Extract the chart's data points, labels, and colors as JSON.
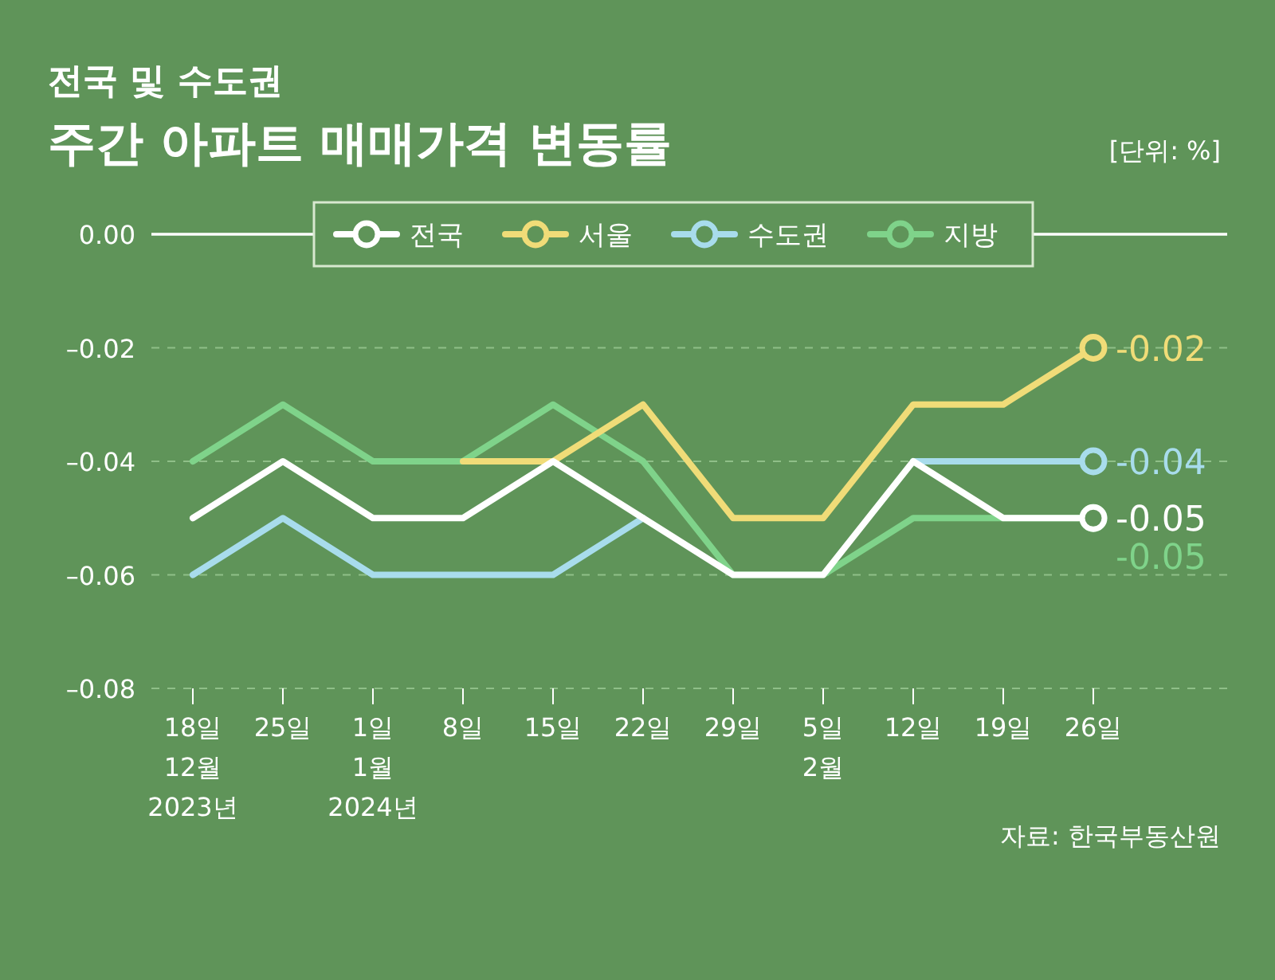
{
  "chart_data": {
    "type": "line",
    "title": "전국 및 수도권",
    "subtitle": "주간 아파트 매매가격 변동률",
    "annotations": [
      "[단위: %]",
      "자료: 한국부동산원"
    ],
    "categories": [
      "18일\n12월\n2023년",
      "25일",
      "1일\n1월\n2024년",
      "8일",
      "15일",
      "22일",
      "29일",
      "5일\n2월",
      "12일",
      "19일",
      "26일"
    ],
    "series": [
      {
        "name": "전국",
        "color": "#ffffff",
        "values": [
          -0.05,
          -0.04,
          -0.05,
          -0.05,
          -0.04,
          -0.05,
          -0.06,
          -0.06,
          -0.04,
          -0.05,
          -0.05
        ],
        "value_labels": [
          null,
          null,
          null,
          null,
          null,
          null,
          null,
          null,
          null,
          null,
          "-0.05"
        ]
      },
      {
        "name": "서울",
        "color": "#f0dc78",
        "values": [
          null,
          null,
          null,
          -0.04,
          -0.04,
          -0.03,
          -0.05,
          -0.05,
          -0.03,
          -0.03,
          -0.02
        ],
        "value_labels": [
          null,
          null,
          null,
          null,
          null,
          null,
          null,
          null,
          null,
          null,
          "-0.02"
        ]
      },
      {
        "name": "수도권",
        "color": "#a8dcec",
        "values": [
          -0.06,
          -0.05,
          -0.06,
          -0.06,
          -0.06,
          -0.05,
          null,
          null,
          -0.04,
          -0.04,
          -0.04
        ],
        "value_labels": [
          null,
          null,
          null,
          null,
          null,
          null,
          null,
          null,
          null,
          null,
          "-0.04"
        ]
      },
      {
        "name": "지방",
        "color": "#7fd38a",
        "values": [
          -0.04,
          -0.03,
          -0.04,
          -0.04,
          -0.03,
          -0.04,
          -0.06,
          -0.06,
          -0.05,
          -0.05,
          -0.05
        ],
        "value_labels": [
          null,
          null,
          null,
          null,
          null,
          null,
          null,
          null,
          null,
          null,
          "-0.05"
        ]
      }
    ],
    "ylim": [
      -0.08,
      0.0
    ],
    "yticks": [
      {
        "value": 0.0,
        "label": "0.00"
      },
      {
        "value": -0.02,
        "label": "–0.02"
      },
      {
        "value": -0.04,
        "label": "–0.04"
      },
      {
        "value": -0.06,
        "label": "–0.06"
      },
      {
        "value": -0.08,
        "label": "–0.08"
      }
    ],
    "grid": "y",
    "legend": "top",
    "line_style": "solid"
  }
}
